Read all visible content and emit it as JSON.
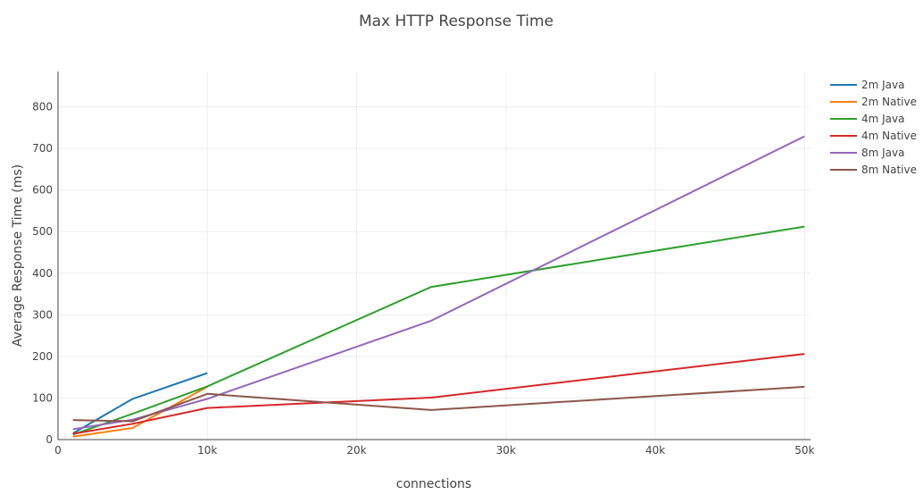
{
  "chart_data": {
    "type": "line",
    "title": "Max HTTP Response Time",
    "xlabel": "connections",
    "ylabel": "Average Response Time (ms)",
    "xlim": [
      0,
      50400
    ],
    "ylim": [
      0,
      885
    ],
    "x_ticks": [
      0,
      10000,
      20000,
      30000,
      40000,
      50000
    ],
    "x_tick_labels": [
      "0",
      "10k",
      "20k",
      "30k",
      "40k",
      "50k"
    ],
    "y_ticks": [
      0,
      100,
      200,
      300,
      400,
      500,
      600,
      700,
      800
    ],
    "y_tick_labels": [
      "0",
      "100",
      "200",
      "300",
      "400",
      "500",
      "600",
      "700",
      "800"
    ],
    "grid": true,
    "legend_position": "top-right",
    "series": [
      {
        "name": "2m Java",
        "color": "#1f77b4",
        "x": [
          1000,
          5000,
          10000
        ],
        "y": [
          15,
          98,
          160
        ]
      },
      {
        "name": "2m Native",
        "color": "#ff7f0e",
        "x": [
          1000,
          5000,
          10000
        ],
        "y": [
          7,
          28,
          127
        ]
      },
      {
        "name": "4m Java",
        "color": "#2ca02c",
        "x": [
          1000,
          5000,
          10000,
          25000,
          50000
        ],
        "y": [
          12,
          62,
          128,
          367,
          512
        ]
      },
      {
        "name": "4m Native",
        "color": "#d62728",
        "x": [
          1000,
          5000,
          10000,
          25000,
          50000
        ],
        "y": [
          14,
          38,
          76,
          101,
          206
        ]
      },
      {
        "name": "8m Java",
        "color": "#9467bd",
        "x": [
          1000,
          5000,
          10000,
          25000,
          50000
        ],
        "y": [
          25,
          48,
          98,
          286,
          729
        ]
      },
      {
        "name": "8m Native",
        "color": "#8c564b",
        "x": [
          1000,
          5000,
          10000,
          25000,
          50000
        ],
        "y": [
          47,
          44,
          110,
          71,
          127
        ]
      }
    ]
  }
}
